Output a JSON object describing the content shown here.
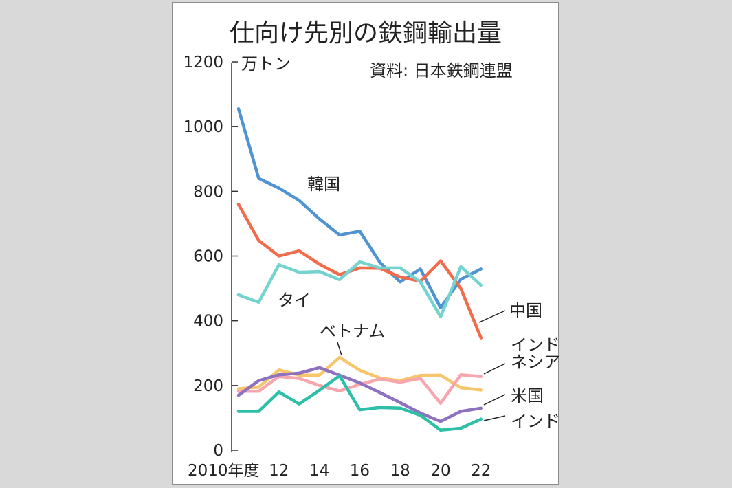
{
  "chart_data": {
    "type": "line",
    "title": "仕向け先別の鉄鋼輸出量",
    "unit": "万トン",
    "source": "資料: 日本鉄鋼連盟",
    "ylim": [
      0,
      1200
    ],
    "yticks": [
      "0",
      "200",
      "400",
      "600",
      "800",
      "1000",
      "1200"
    ],
    "x": [
      2010,
      2011,
      2012,
      2013,
      2014,
      2015,
      2016,
      2017,
      2018,
      2019,
      2020,
      2021,
      2022
    ],
    "xtick_labels": [
      {
        "x": 2010,
        "label": "2010年度"
      },
      {
        "x": 2012,
        "label": "12"
      },
      {
        "x": 2014,
        "label": "14"
      },
      {
        "x": 2016,
        "label": "16"
      },
      {
        "x": 2018,
        "label": "18"
      },
      {
        "x": 2020,
        "label": "20"
      },
      {
        "x": 2022,
        "label": "22"
      }
    ],
    "grid": false,
    "series": [
      {
        "name": "韓国",
        "color": "#4f94d0",
        "values": [
          1055,
          840,
          810,
          772,
          715,
          665,
          677,
          580,
          520,
          560,
          440,
          528,
          560
        ]
      },
      {
        "name": "中国",
        "color": "#f26b4b",
        "values": [
          760,
          648,
          600,
          616,
          575,
          542,
          563,
          562,
          535,
          522,
          585,
          500,
          347
        ]
      },
      {
        "name": "タイ",
        "color": "#74d3cf",
        "values": [
          480,
          457,
          573,
          550,
          552,
          527,
          582,
          563,
          563,
          520,
          412,
          567,
          510
        ]
      },
      {
        "name": "ベトナム",
        "color": "#f7c56b",
        "values": [
          190,
          195,
          248,
          232,
          232,
          287,
          247,
          223,
          215,
          231,
          232,
          193,
          186
        ]
      },
      {
        "name": "インドネシア",
        "color": "#f7a6ae",
        "values": [
          182,
          182,
          228,
          222,
          200,
          183,
          203,
          220,
          210,
          222,
          145,
          233,
          228
        ]
      },
      {
        "name": "米国",
        "color": "#8e72bf",
        "values": [
          170,
          215,
          233,
          238,
          255,
          232,
          208,
          178,
          147,
          115,
          89,
          120,
          130
        ]
      },
      {
        "name": "インド",
        "color": "#2dbfa7",
        "values": [
          120,
          120,
          180,
          143,
          185,
          230,
          125,
          132,
          130,
          108,
          62,
          68,
          96
        ]
      }
    ],
    "labels": {
      "kankoku": "韓国",
      "tai": "タイ",
      "vietnam": "ベトナム",
      "chugoku": "中国",
      "indonesia_1": "インド",
      "indonesia_2": "ネシア",
      "beikoku": "米国",
      "india": "インド"
    }
  }
}
